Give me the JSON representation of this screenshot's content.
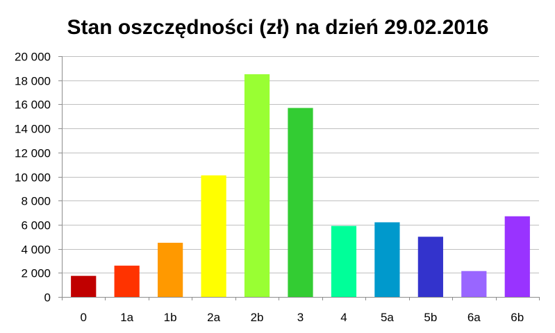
{
  "chart_data": {
    "type": "bar",
    "title": "Stan oszczędności (zł) na dzień 29.02.2016",
    "xlabel": "",
    "ylabel": "",
    "categories": [
      "0",
      "1a",
      "1b",
      "2a",
      "2b",
      "3",
      "4",
      "5a",
      "5b",
      "6a",
      "6b"
    ],
    "values": [
      1750,
      2600,
      4500,
      10100,
      18500,
      15700,
      5900,
      6200,
      5000,
      2150,
      6700
    ],
    "colors": [
      "#c00000",
      "#ff3300",
      "#ff9900",
      "#ffff00",
      "#99ff33",
      "#33cc33",
      "#00ff99",
      "#0099cc",
      "#3333cc",
      "#9966ff",
      "#9933ff"
    ],
    "ylim": [
      0,
      20000
    ],
    "yticks": [
      0,
      2000,
      4000,
      6000,
      8000,
      10000,
      12000,
      14000,
      16000,
      18000,
      20000
    ],
    "ytick_labels": [
      "0",
      "2 000",
      "4 000",
      "6 000",
      "8 000",
      "10 000",
      "12 000",
      "14 000",
      "16 000",
      "18 000",
      "20 000"
    ],
    "grid": true,
    "legend": "none"
  }
}
